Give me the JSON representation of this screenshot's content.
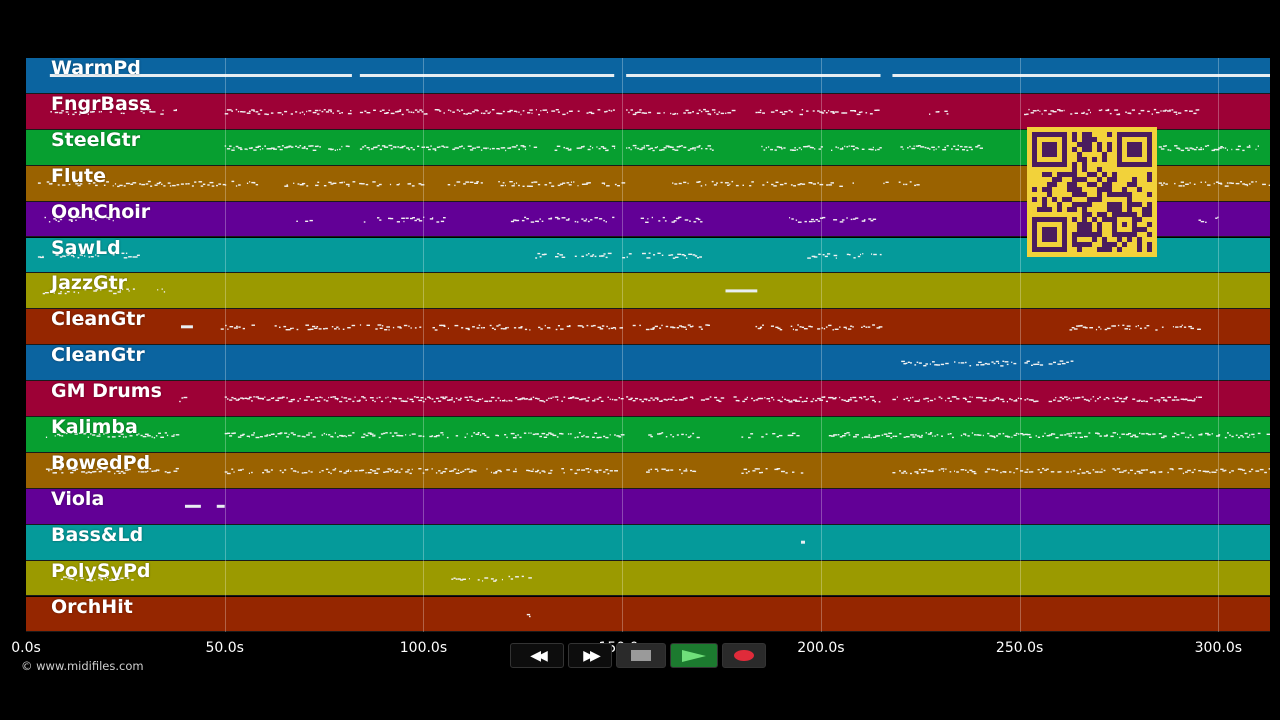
{
  "tracks": [
    {
      "name": "WarmPd",
      "color": "#0b64a0"
    },
    {
      "name": "FngrBass",
      "color": "#9d0136"
    },
    {
      "name": "SteelGtr",
      "color": "#079f30"
    },
    {
      "name": "Flute",
      "color": "#9a6200"
    },
    {
      "name": "OohChoir",
      "color": "#620096"
    },
    {
      "name": "SawLd",
      "color": "#059a9a"
    },
    {
      "name": "JazzGtr",
      "color": "#9b9a00"
    },
    {
      "name": "CleanGtr",
      "color": "#952600"
    },
    {
      "name": "CleanGtr",
      "color": "#0b64a0"
    },
    {
      "name": "GM Drums",
      "color": "#9d0136"
    },
    {
      "name": "Kalimba",
      "color": "#079f30"
    },
    {
      "name": "BowedPd",
      "color": "#9a6200"
    },
    {
      "name": "Viola",
      "color": "#620096"
    },
    {
      "name": "Bass&Ld",
      "color": "#059a9a"
    },
    {
      "name": "PolySyPd",
      "color": "#9b9a00"
    },
    {
      "name": "OrchHit",
      "color": "#952600"
    }
  ],
  "timeline": {
    "max_seconds": 313,
    "ticks": [
      "0.0s",
      "50.0s",
      "100.0s",
      "150.0s",
      "200.0s",
      "250.0s",
      "300.0s"
    ]
  },
  "copyright": "© www.midifiles.com",
  "transport": {
    "rewind": "◀◀",
    "forward": "▶▶"
  },
  "notes": [
    [
      [
        6,
        82,
        1,
        "long"
      ],
      [
        84,
        148,
        1,
        "long"
      ],
      [
        151,
        215,
        1,
        "long"
      ],
      [
        218,
        313,
        1,
        "long"
      ]
    ],
    [
      [
        5,
        38,
        0.4
      ],
      [
        50,
        82,
        0.7
      ],
      [
        84,
        148,
        0.7
      ],
      [
        151,
        178,
        0.7
      ],
      [
        183,
        215,
        0.6
      ],
      [
        225,
        235,
        0.4
      ],
      [
        250,
        295,
        0.7
      ]
    ],
    [
      [
        50,
        82,
        0.9
      ],
      [
        84,
        128,
        0.9
      ],
      [
        133,
        148,
        0.8
      ],
      [
        151,
        173,
        0.9
      ],
      [
        185,
        200,
        0.8
      ],
      [
        202,
        215,
        0.8
      ],
      [
        220,
        240,
        0.8
      ],
      [
        285,
        310,
        0.8
      ]
    ],
    [
      [
        3,
        60,
        0.6
      ],
      [
        65,
        100,
        0.5
      ],
      [
        105,
        150,
        0.5
      ],
      [
        162,
        225,
        0.5
      ],
      [
        285,
        313,
        0.6
      ]
    ],
    [
      [
        3,
        25,
        0.4
      ],
      [
        68,
        72,
        0.5
      ],
      [
        85,
        105,
        0.6
      ],
      [
        122,
        148,
        0.6
      ],
      [
        153,
        170,
        0.6
      ],
      [
        192,
        215,
        0.6
      ],
      [
        295,
        298,
        0.4
      ],
      [
        297,
        300,
        0.4
      ]
    ],
    [
      [
        3,
        28,
        0.6
      ],
      [
        127,
        148,
        0.6
      ],
      [
        150,
        152,
        0.5
      ],
      [
        155,
        170,
        0.6
      ],
      [
        196,
        215,
        0.6
      ]
    ],
    [
      [
        2,
        28,
        0.5
      ],
      [
        33,
        35,
        0.4
      ],
      [
        176,
        184,
        1,
        "long"
      ]
    ],
    [
      [
        39,
        42,
        0.8,
        "long"
      ],
      [
        49,
        57,
        0.4
      ],
      [
        62,
        82,
        0.6
      ],
      [
        84,
        150,
        0.6
      ],
      [
        151,
        172,
        0.6
      ],
      [
        183,
        215,
        0.6
      ],
      [
        262,
        295,
        0.6
      ]
    ],
    [
      [
        218,
        263,
        0.6
      ]
    ],
    [
      [
        38,
        40,
        0.4
      ],
      [
        50,
        150,
        0.9
      ],
      [
        151,
        175,
        0.8
      ],
      [
        178,
        215,
        0.9
      ],
      [
        218,
        295,
        0.8
      ]
    ],
    [
      [
        5,
        38,
        0.7
      ],
      [
        50,
        150,
        0.7
      ],
      [
        156,
        170,
        0.6
      ],
      [
        180,
        195,
        0.6
      ],
      [
        202,
        313,
        0.7
      ]
    ],
    [
      [
        5,
        38,
        0.7
      ],
      [
        50,
        150,
        0.7
      ],
      [
        156,
        170,
        0.6
      ],
      [
        180,
        195,
        0.6
      ],
      [
        218,
        313,
        0.7
      ]
    ],
    [
      [
        40,
        44,
        1,
        "long"
      ],
      [
        48,
        50,
        1,
        "long"
      ]
    ],
    [
      [
        195,
        196,
        1,
        "long"
      ]
    ],
    [
      [
        6,
        28,
        0.5
      ],
      [
        107,
        128,
        0.6
      ]
    ],
    [
      [
        126,
        127,
        0.5
      ]
    ]
  ]
}
